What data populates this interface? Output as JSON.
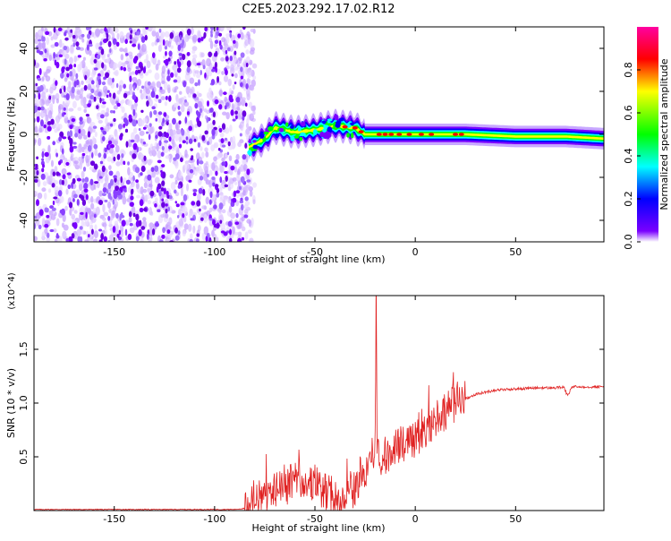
{
  "title": "C2E5.2023.292.17.02.R12",
  "chart_data": [
    {
      "type": "heatmap",
      "xlabel": "Height of straight line (km)",
      "ylabel": "Frequency (Hz)",
      "xlim": [
        -190,
        94
      ],
      "ylim": [
        -50,
        50
      ],
      "x_ticks": [
        -150,
        -100,
        -50,
        0,
        50
      ],
      "y_ticks": [
        -40,
        -20,
        0,
        20,
        40
      ],
      "colorbar": {
        "label": "Normalized spectral amplitude",
        "range": [
          0,
          1
        ],
        "ticks": [
          "0.0",
          "0.2",
          "0.4",
          "0.6",
          "0.8"
        ],
        "colors": [
          "#ffffff",
          "#7a00ff",
          "#0000ff",
          "#00ffff",
          "#00ff00",
          "#ffff00",
          "#ff0000",
          "#ff00a0"
        ]
      },
      "features": {
        "noise_region_x": [
          -190,
          -83
        ],
        "signal_band_center_hz": [
          [
            -83,
            -6
          ],
          [
            -75,
            -2
          ],
          [
            -70,
            3
          ],
          [
            -60,
            1
          ],
          [
            -50,
            2
          ],
          [
            -40,
            4
          ],
          [
            -30,
            3
          ],
          [
            -25,
            0
          ],
          [
            -10,
            0
          ],
          [
            0,
            0
          ],
          [
            25,
            0
          ],
          [
            50,
            -1
          ],
          [
            75,
            -1
          ],
          [
            94,
            -2
          ]
        ],
        "peak_points_x": [
          -35,
          -30,
          -27,
          -18,
          -15,
          -12,
          -8,
          -3,
          3,
          8,
          20,
          23
        ]
      }
    },
    {
      "type": "line",
      "xlabel": "Height of straight line (km)",
      "ylabel": "SNR (10 * v/v)",
      "y_multiplier": "(x10^4)",
      "xlim": [
        -190,
        94
      ],
      "ylim": [
        0,
        2.0
      ],
      "x_ticks": [
        -150,
        -100,
        -50,
        0,
        50
      ],
      "y_ticks": [
        "0.5",
        "1.0",
        "1.5"
      ],
      "color": "#e02020",
      "series": [
        {
          "x": [
            -190,
            -150,
            -100,
            -90,
            -85,
            -80,
            -75,
            -70,
            -65,
            -60,
            -55,
            -50,
            -45,
            -40,
            -35,
            -30,
            -28,
            -25,
            -22,
            -20,
            -19.5,
            -19,
            -18,
            -15,
            -10,
            -5,
            0,
            5,
            10,
            15,
            20,
            25,
            30,
            40,
            50,
            60,
            70,
            74,
            76,
            78,
            80,
            85,
            94
          ],
          "y": [
            0.01,
            0.01,
            0.01,
            0.01,
            0.02,
            0.06,
            0.12,
            0.18,
            0.2,
            0.22,
            0.24,
            0.2,
            0.14,
            0.1,
            0.12,
            0.2,
            0.28,
            0.34,
            0.4,
            0.45,
            1.98,
            0.55,
            0.45,
            0.5,
            0.55,
            0.62,
            0.68,
            0.74,
            0.84,
            0.92,
            0.98,
            1.04,
            1.08,
            1.12,
            1.13,
            1.14,
            1.14,
            1.15,
            1.06,
            1.15,
            1.15,
            1.15,
            1.15
          ]
        }
      ]
    }
  ]
}
